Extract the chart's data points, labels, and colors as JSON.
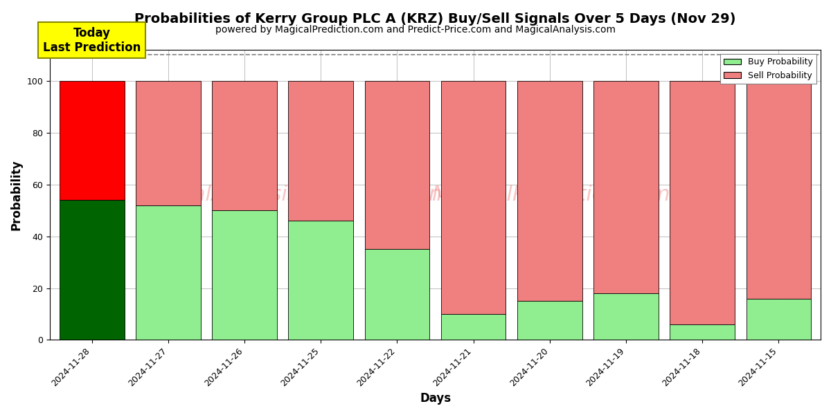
{
  "title": "Probabilities of Kerry Group PLC A (KRZ) Buy/Sell Signals Over 5 Days (Nov 29)",
  "subtitle": "powered by MagicalPrediction.com and Predict-Price.com and MagicalAnalysis.com",
  "xlabel": "Days",
  "ylabel": "Probability",
  "categories": [
    "2024-11-28",
    "2024-11-27",
    "2024-11-26",
    "2024-11-25",
    "2024-11-22",
    "2024-11-21",
    "2024-11-20",
    "2024-11-19",
    "2024-11-18",
    "2024-11-15"
  ],
  "buy_values": [
    54,
    52,
    50,
    46,
    35,
    10,
    15,
    18,
    6,
    16
  ],
  "sell_values": [
    46,
    48,
    50,
    54,
    65,
    90,
    85,
    82,
    94,
    84
  ],
  "today_buy_color": "#006400",
  "today_sell_color": "#ff0000",
  "other_buy_color": "#90EE90",
  "other_sell_color": "#F08080",
  "today_annotation_bg": "#FFFF00",
  "today_annotation_text": "Today\nLast Prediction",
  "watermark_lines": [
    "MagicalAnalysis.com",
    "MagicalPrediction.com"
  ],
  "watermark_center": "calAnalysis.com  n  MagicalPrediction.com",
  "ylim": [
    0,
    112
  ],
  "dashed_line_y": 110,
  "legend_buy_label": "Buy Probability",
  "legend_sell_label": "Sell Probability",
  "bar_width": 0.85,
  "title_fontsize": 14,
  "subtitle_fontsize": 10,
  "axis_label_fontsize": 12,
  "tick_fontsize": 9
}
